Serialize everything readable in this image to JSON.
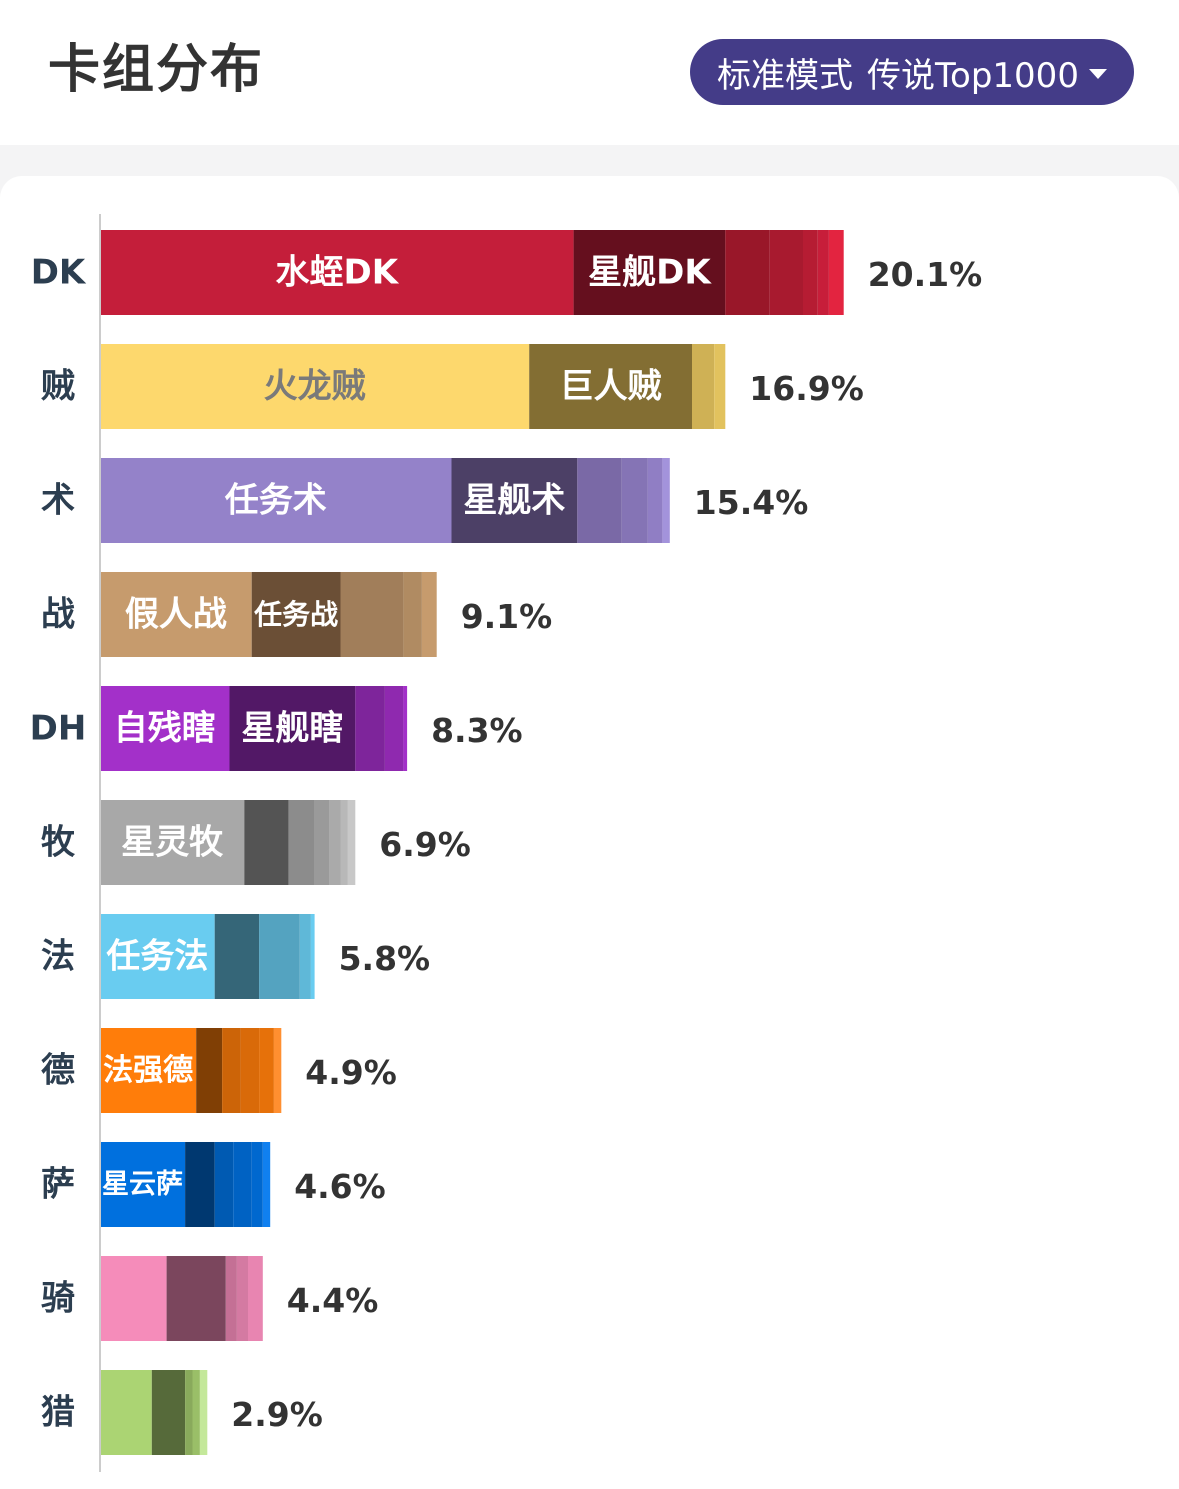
{
  "header": {
    "title": "卡组分布",
    "mode_label": "标准模式",
    "rank_label": "传说Top1000",
    "dropdown_icon": "caret-down-icon"
  },
  "chart_data": {
    "type": "bar",
    "orientation": "horizontal",
    "stacked": true,
    "x_unit": "%",
    "categories": [
      "DK",
      "贼",
      "术",
      "战",
      "DH",
      "牧",
      "法",
      "德",
      "萨",
      "骑",
      "猎"
    ],
    "totals": [
      20.1,
      16.9,
      15.4,
      9.1,
      8.3,
      6.9,
      5.8,
      4.9,
      4.6,
      4.4,
      2.9
    ],
    "total_labels": [
      "20.1%",
      "16.9%",
      "15.4%",
      "9.1%",
      "8.3%",
      "6.9%",
      "5.8%",
      "4.9%",
      "4.6%",
      "4.4%",
      "2.9%"
    ],
    "rows": [
      {
        "segments": [
          {
            "name": "水蛭DK",
            "value": 12.8,
            "color": "#c41e3a"
          },
          {
            "name": "星舰DK",
            "value": 4.1,
            "color": "#650f1e"
          },
          {
            "value": 1.2,
            "color": "#991729"
          },
          {
            "value": 0.9,
            "color": "#a81a2f"
          },
          {
            "value": 0.4,
            "color": "#b61c33"
          },
          {
            "value": 0.3,
            "color": "#c71e3a"
          },
          {
            "value": 0.4,
            "color": "#e32440"
          }
        ]
      },
      {
        "segments": [
          {
            "name": "火龙贼",
            "value": 11.6,
            "color": "#fdd86d"
          },
          {
            "name": "巨人贼",
            "value": 4.4,
            "color": "#836e33"
          },
          {
            "value": 0.6,
            "color": "#cfb155"
          },
          {
            "value": 0.3,
            "color": "#e2c25e"
          }
        ]
      },
      {
        "segments": [
          {
            "name": "任务术",
            "value": 9.5,
            "color": "#9482c9"
          },
          {
            "name": "星舰术",
            "value": 3.4,
            "color": "#4c4066"
          },
          {
            "value": 1.2,
            "color": "#7a69a6"
          },
          {
            "value": 0.7,
            "color": "#8574b5"
          },
          {
            "value": 0.4,
            "color": "#907ec4"
          },
          {
            "value": 0.2,
            "color": "#a393db"
          }
        ]
      },
      {
        "segments": [
          {
            "name": "假人战",
            "value": 4.1,
            "color": "#c69b6d"
          },
          {
            "name": "任务战",
            "value": 2.4,
            "color": "#6b4f36"
          },
          {
            "value": 1.7,
            "color": "#a17e5a"
          },
          {
            "value": 0.5,
            "color": "#b08b62"
          },
          {
            "value": 0.4,
            "color": "#c69b6d"
          }
        ]
      },
      {
        "segments": [
          {
            "name": "自残瞎",
            "value": 3.5,
            "color": "#a330c9"
          },
          {
            "name": "星舰瞎",
            "value": 3.4,
            "color": "#521866"
          },
          {
            "value": 0.8,
            "color": "#7e259b"
          },
          {
            "value": 0.5,
            "color": "#8f29af"
          },
          {
            "value": 0.1,
            "color": "#a330c9"
          }
        ]
      },
      {
        "segments": [
          {
            "name": "星灵牧",
            "value": 3.9,
            "color": "#a8a8a8"
          },
          {
            "value": 1.2,
            "color": "#545454"
          },
          {
            "value": 0.7,
            "color": "#8c8c8c"
          },
          {
            "value": 0.4,
            "color": "#9a9a9a"
          },
          {
            "value": 0.3,
            "color": "#aaaaaa"
          },
          {
            "value": 0.2,
            "color": "#b8b8b8"
          },
          {
            "value": 0.2,
            "color": "#c8c8c8"
          }
        ]
      },
      {
        "segments": [
          {
            "name": "任务法",
            "value": 3.1,
            "color": "#69ccf0"
          },
          {
            "value": 1.2,
            "color": "#356678"
          },
          {
            "value": 1.1,
            "color": "#54a3c0"
          },
          {
            "value": 0.3,
            "color": "#5fb8d8"
          },
          {
            "value": 0.1,
            "color": "#69ccf0"
          }
        ]
      },
      {
        "segments": [
          {
            "name": "法强德",
            "value": 2.6,
            "color": "#ff7d0a"
          },
          {
            "value": 0.7,
            "color": "#803f05"
          },
          {
            "value": 0.5,
            "color": "#cc6408"
          },
          {
            "value": 0.5,
            "color": "#d96a09"
          },
          {
            "value": 0.4,
            "color": "#e6710a"
          },
          {
            "value": 0.2,
            "color": "#ff8f30"
          }
        ]
      },
      {
        "segments": [
          {
            "name": "星云萨",
            "value": 2.3,
            "color": "#0070de"
          },
          {
            "value": 0.8,
            "color": "#003870"
          },
          {
            "value": 0.5,
            "color": "#005ab2"
          },
          {
            "value": 0.5,
            "color": "#0062c3"
          },
          {
            "value": 0.3,
            "color": "#0068cf"
          },
          {
            "value": 0.2,
            "color": "#1080f0"
          }
        ]
      },
      {
        "segments": [
          {
            "value": 1.8,
            "color": "#f58cba"
          },
          {
            "value": 1.6,
            "color": "#7b465d"
          },
          {
            "value": 0.3,
            "color": "#c47095"
          },
          {
            "value": 0.3,
            "color": "#d47aa2"
          },
          {
            "value": 0.4,
            "color": "#e885b1"
          }
        ]
      },
      {
        "segments": [
          {
            "value": 1.4,
            "color": "#abd473"
          },
          {
            "value": 0.9,
            "color": "#566a3a"
          },
          {
            "value": 0.2,
            "color": "#89aa5c"
          },
          {
            "value": 0.2,
            "color": "#9abf68"
          },
          {
            "value": 0.2,
            "color": "#c4e89a"
          }
        ]
      }
    ],
    "colors": {
      "axis_line": "#cccccc",
      "category_label": "#2c3e50",
      "total_label": "#333333"
    }
  }
}
